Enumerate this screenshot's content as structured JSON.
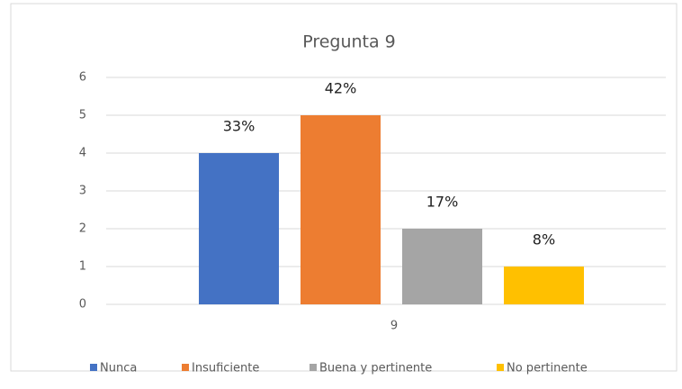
{
  "chart_data": {
    "type": "bar",
    "title": "Pregunta 9",
    "categories": [
      "9"
    ],
    "series": [
      {
        "name": "Nunca",
        "color": "#4472c4",
        "values": [
          4
        ],
        "data_labels": [
          "33%"
        ]
      },
      {
        "name": "Insuficiente",
        "color": "#ed7d31",
        "values": [
          5
        ],
        "data_labels": [
          "42%"
        ]
      },
      {
        "name": "Buena y pertinente",
        "color": "#a5a5a5",
        "values": [
          2
        ],
        "data_labels": [
          "17%"
        ]
      },
      {
        "name": "No pertinente",
        "color": "#ffc000",
        "values": [
          1
        ],
        "data_labels": [
          "8%"
        ]
      }
    ],
    "ylim": [
      0,
      6
    ],
    "yticks": [
      0,
      1,
      2,
      3,
      4,
      5,
      6
    ],
    "grid": true,
    "legend": "bottom"
  }
}
